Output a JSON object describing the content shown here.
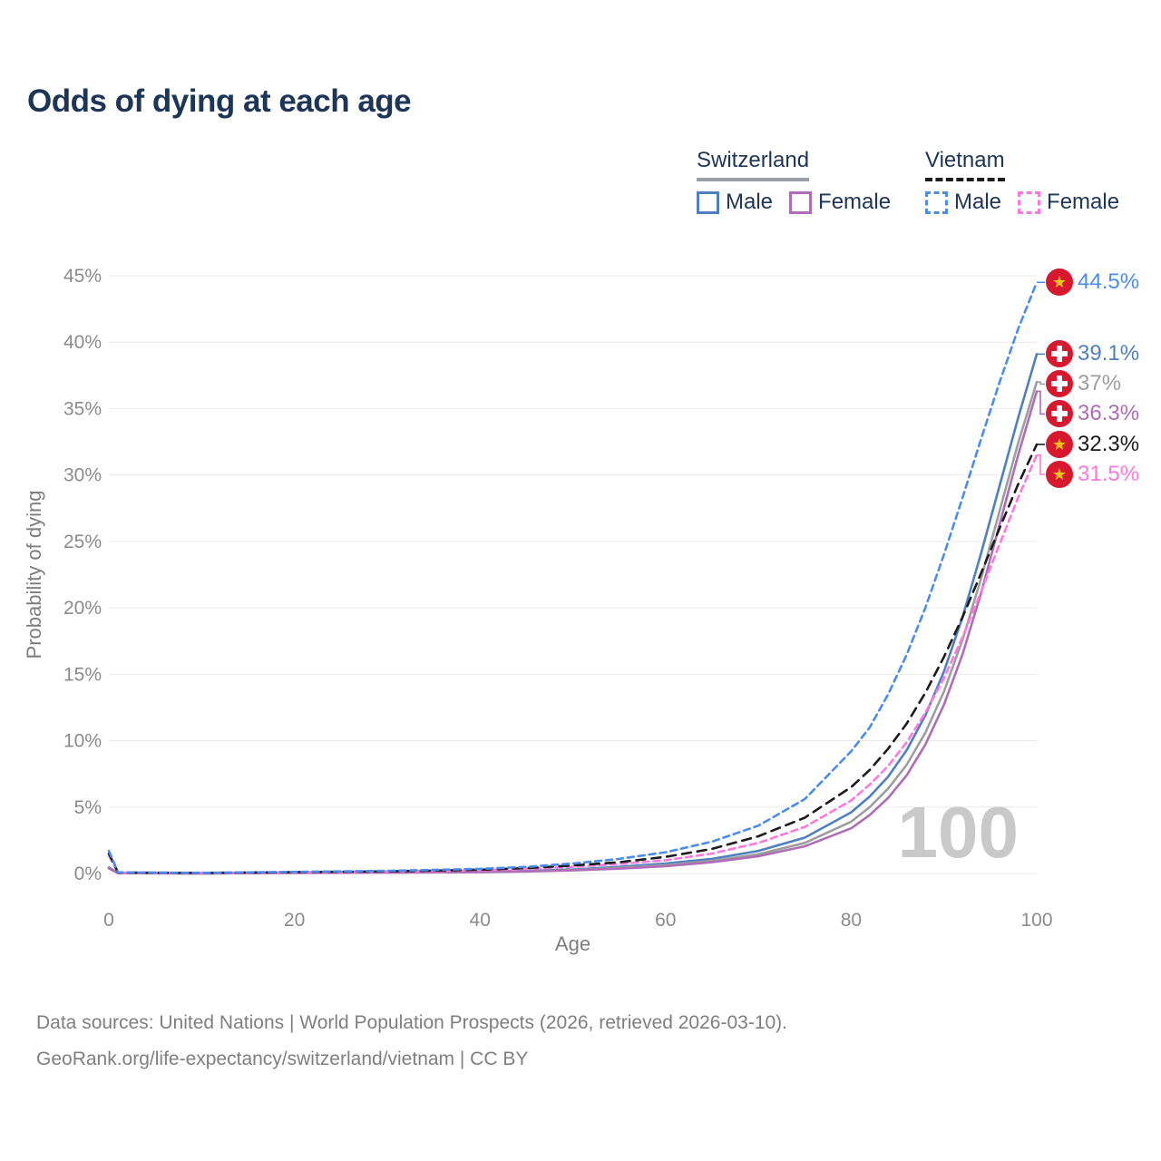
{
  "title": "Odds of dying at each age",
  "legend": {
    "groups": [
      {
        "label": "Switzerland",
        "line_style": "solid",
        "underline_color": "#9aa0a6",
        "items": [
          {
            "label": "Male",
            "color": "#4e80c0"
          },
          {
            "label": "Female",
            "color": "#ae6db6"
          }
        ]
      },
      {
        "label": "Vietnam",
        "line_style": "dashed",
        "underline_color": "#1c1c1c",
        "items": [
          {
            "label": "Male",
            "color": "#4a8cf0"
          },
          {
            "label": "Female",
            "color": "#ff78e0"
          }
        ]
      }
    ]
  },
  "chart_data": {
    "type": "line",
    "title": "Odds of dying at each age",
    "xlabel": "Age",
    "ylabel": "Probability of dying",
    "xlim": [
      0,
      100
    ],
    "ylim": [
      0,
      45
    ],
    "x_ticks": [
      0,
      20,
      40,
      60,
      80,
      100
    ],
    "y_ticks_pct": [
      0,
      5,
      10,
      15,
      20,
      25,
      30,
      35,
      40,
      45
    ],
    "grid": "horizontal only",
    "legend_position": "top-right",
    "ages": [
      0,
      1,
      10,
      20,
      30,
      40,
      45,
      50,
      55,
      60,
      65,
      70,
      75,
      80,
      82,
      84,
      86,
      88,
      90,
      92,
      94,
      96,
      98,
      100
    ],
    "series": [
      {
        "name": "Vietnam Male",
        "country": "Vietnam",
        "sex": "Male",
        "style": "dashed",
        "dash": "7 5",
        "color": "#4a8cf0",
        "flag": "vietnam",
        "end_label": "44.5%",
        "end_value": 44.5,
        "values": [
          1.7,
          0.08,
          0.05,
          0.12,
          0.2,
          0.35,
          0.5,
          0.75,
          1.1,
          1.6,
          2.4,
          3.6,
          5.6,
          9.2,
          11.0,
          13.5,
          16.5,
          20.0,
          24.0,
          28.3,
          32.7,
          37.0,
          41.0,
          44.5
        ]
      },
      {
        "name": "Switzerland Male",
        "country": "Switzerland",
        "sex": "Male",
        "style": "solid",
        "dash": null,
        "color": "#4e80c0",
        "flag": "switzerland",
        "end_label": "39.1%",
        "end_value": 39.1,
        "values": [
          0.45,
          0.03,
          0.01,
          0.06,
          0.08,
          0.13,
          0.2,
          0.3,
          0.5,
          0.75,
          1.1,
          1.7,
          2.7,
          4.6,
          5.8,
          7.3,
          9.3,
          11.9,
          15.2,
          19.3,
          24.1,
          29.2,
          34.3,
          39.1
        ]
      },
      {
        "name": "Switzerland",
        "country": "Switzerland",
        "sex": "Both",
        "style": "solid",
        "dash": null,
        "color": "#9e9e9e",
        "flag": "switzerland",
        "end_label": "37%",
        "end_value": 37,
        "values": [
          0.4,
          0.03,
          0.01,
          0.05,
          0.07,
          0.11,
          0.17,
          0.26,
          0.42,
          0.63,
          0.95,
          1.45,
          2.3,
          3.9,
          5.0,
          6.4,
          8.2,
          10.6,
          13.7,
          17.6,
          22.2,
          27.3,
          32.4,
          37.0
        ]
      },
      {
        "name": "Switzerland Female",
        "country": "Switzerland",
        "sex": "Female",
        "style": "solid",
        "dash": null,
        "color": "#ae6db6",
        "flag": "switzerland",
        "end_label": "36.3%",
        "end_value": 36.3,
        "values": [
          0.38,
          0.03,
          0.01,
          0.04,
          0.06,
          0.1,
          0.15,
          0.23,
          0.36,
          0.55,
          0.85,
          1.3,
          2.05,
          3.4,
          4.4,
          5.7,
          7.4,
          9.7,
          12.7,
          16.5,
          21.1,
          26.3,
          31.5,
          36.3
        ]
      },
      {
        "name": "Vietnam",
        "country": "Vietnam",
        "sex": "Both",
        "style": "dashed",
        "dash": "10 7",
        "color": "#1c1c1c",
        "flag": "vietnam",
        "end_label": "32.3%",
        "end_value": 32.3,
        "values": [
          1.5,
          0.07,
          0.04,
          0.1,
          0.16,
          0.28,
          0.4,
          0.6,
          0.85,
          1.25,
          1.85,
          2.8,
          4.2,
          6.5,
          7.8,
          9.4,
          11.3,
          13.6,
          16.3,
          19.3,
          22.6,
          26.0,
          29.3,
          32.3
        ]
      },
      {
        "name": "Vietnam Female",
        "country": "Vietnam",
        "sex": "Female",
        "style": "dashed",
        "dash": "7 5",
        "color": "#ff78e0",
        "flag": "vietnam",
        "end_label": "31.5%",
        "end_value": 31.5,
        "values": [
          1.35,
          0.06,
          0.04,
          0.09,
          0.14,
          0.24,
          0.35,
          0.5,
          0.72,
          1.0,
          1.5,
          2.3,
          3.5,
          5.5,
          6.7,
          8.1,
          9.9,
          12.1,
          14.7,
          17.8,
          21.2,
          24.8,
          28.3,
          31.5
        ]
      }
    ]
  },
  "watermark": "100",
  "colors": {
    "title_text": "#1d3557",
    "axis_text": "#8b8b8b",
    "gridline": "#eaeaea",
    "watermark": "#c9c9c9",
    "badge_red": "#d7182f",
    "badge_star_yellow": "#f5c60f",
    "footer_text": "#7f7f7f"
  },
  "footer": {
    "line1": "Data sources: United Nations | World Population Prospects (2026, retrieved 2026-03-10).",
    "line2": "GeoRank.org/life-expectancy/switzerland/vietnam | CC BY"
  }
}
